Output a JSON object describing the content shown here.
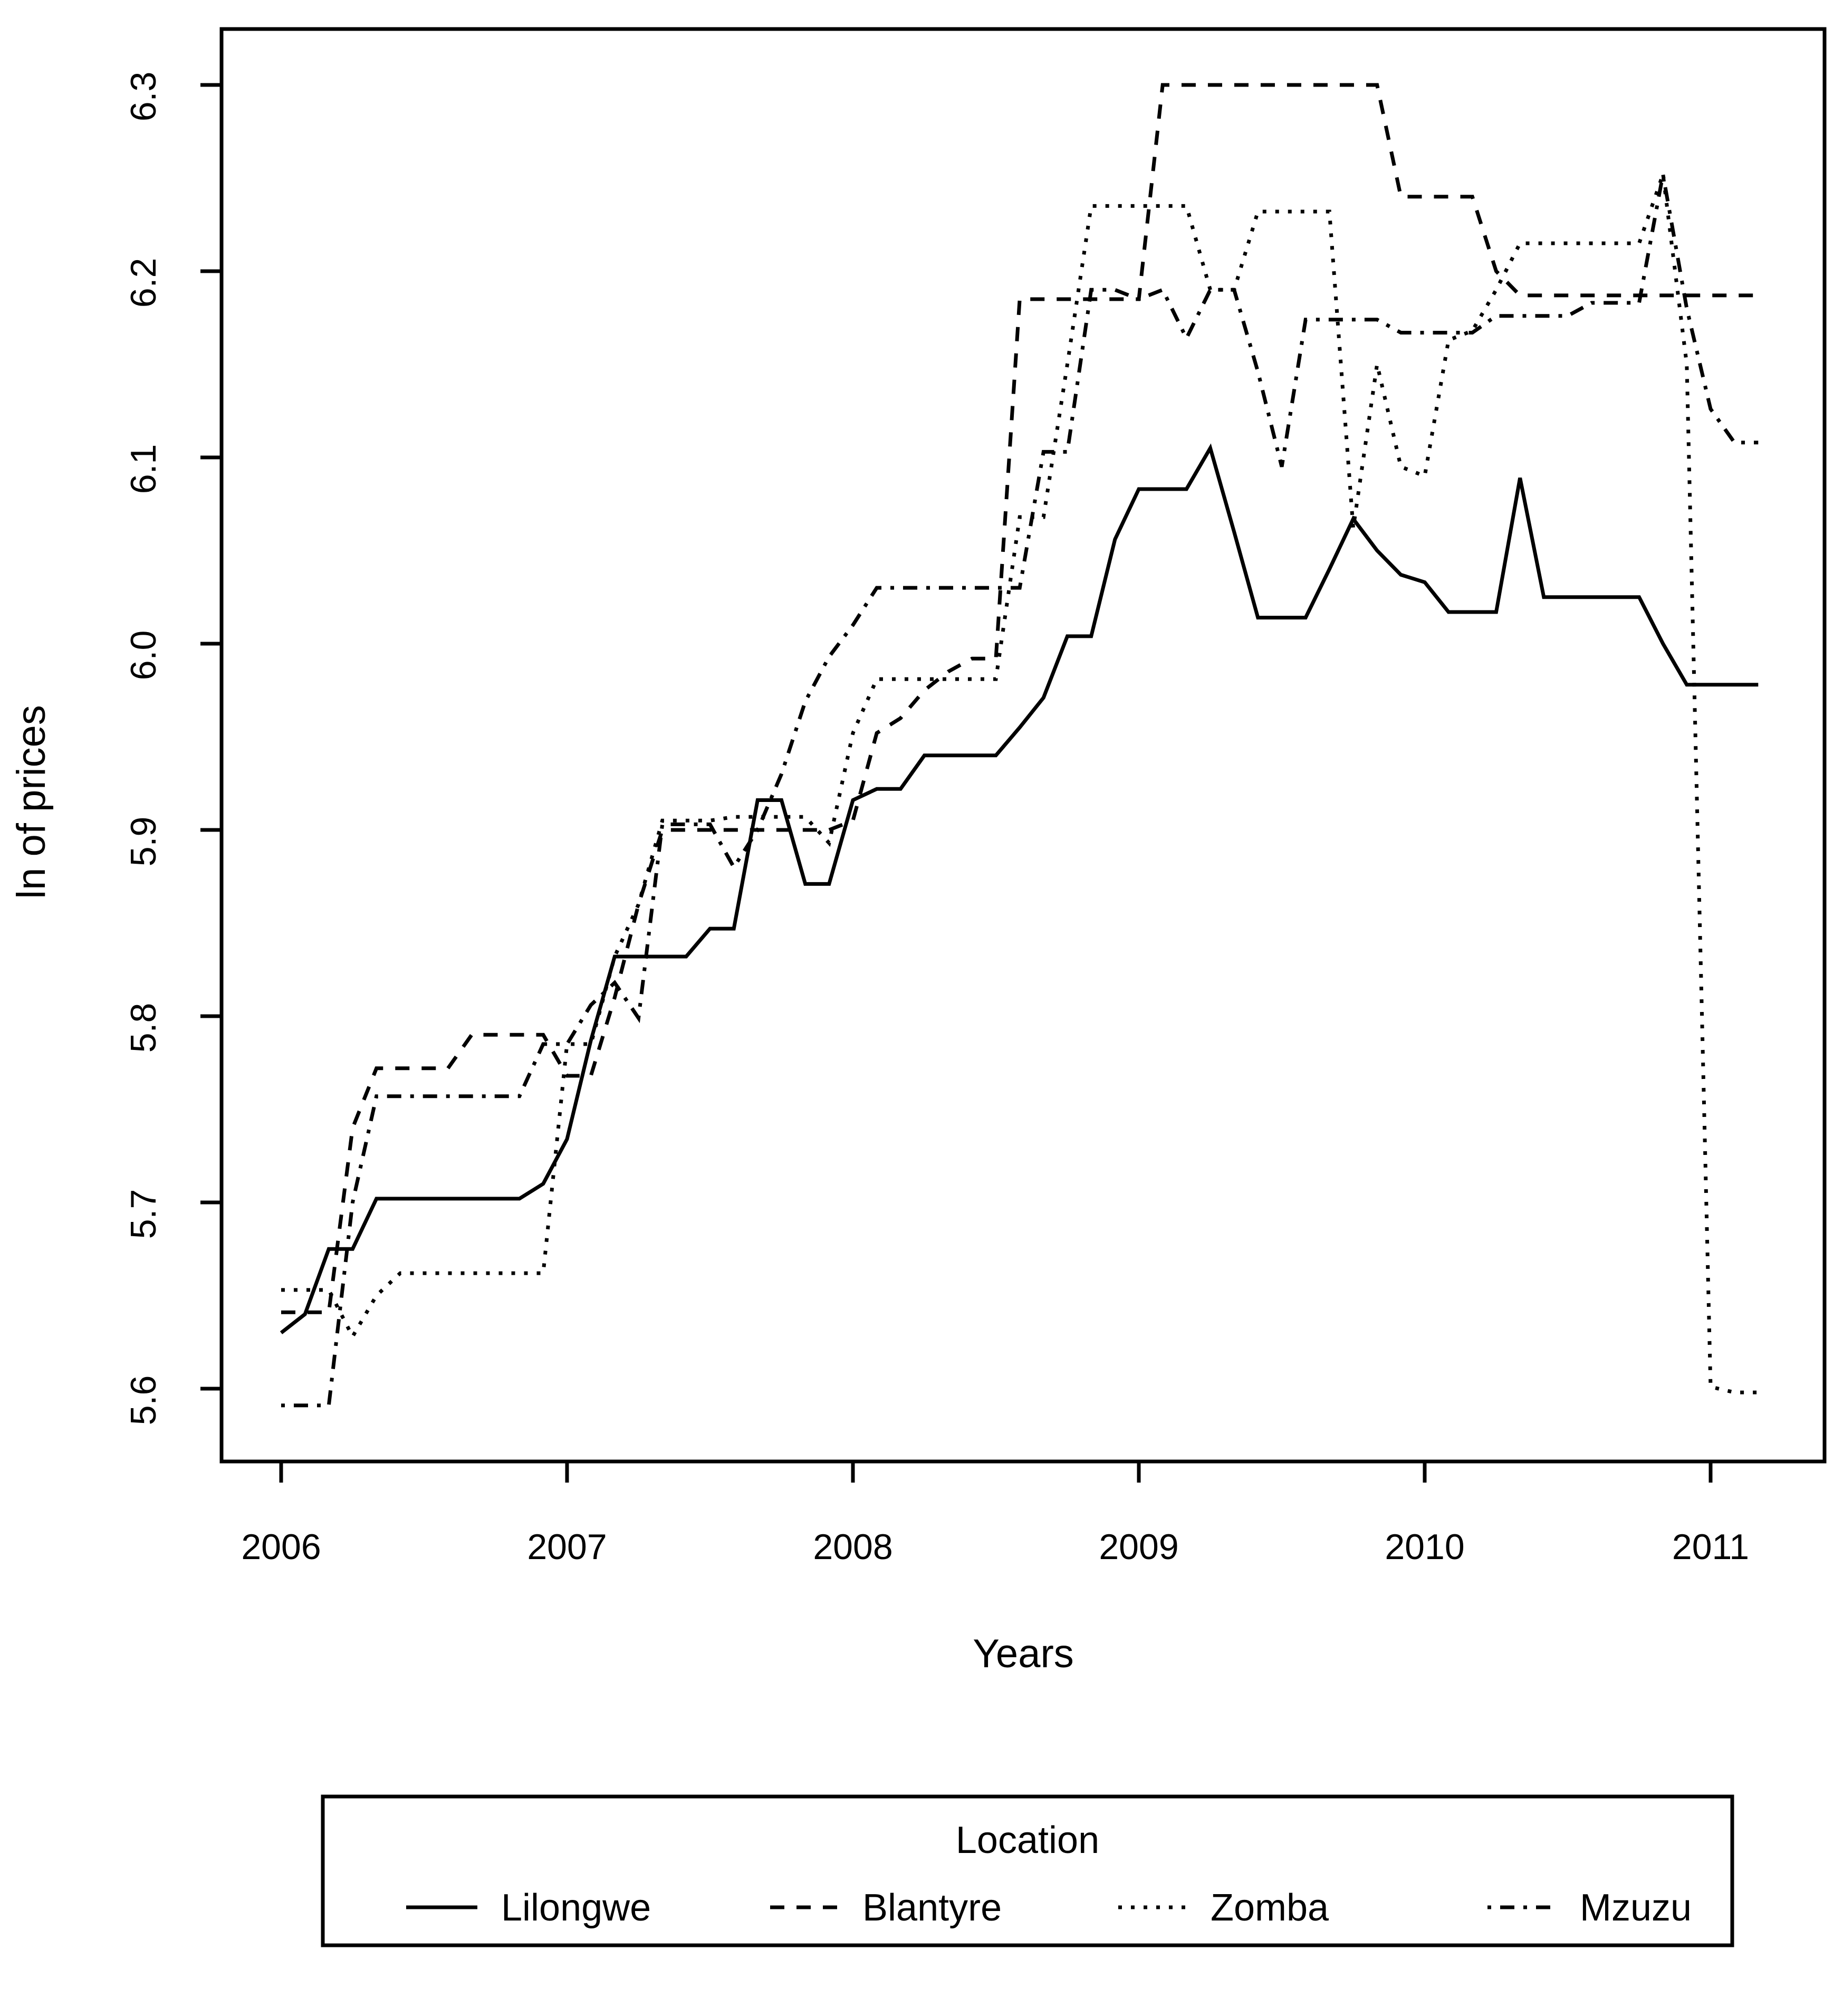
{
  "figure": {
    "background_color": "#ffffff",
    "line_color": "#000000"
  },
  "chart_data": {
    "type": "line",
    "title": "",
    "xlabel": "Years",
    "ylabel": "ln of prices",
    "x_unit": "monthly",
    "x_start": "2006-01",
    "x_end": "2011-03",
    "points_per_series": 63,
    "x_ticks": [
      "2006",
      "2007",
      "2008",
      "2009",
      "2010",
      "2011"
    ],
    "y_ticks": [
      "5.6",
      "5.7",
      "5.8",
      "5.9",
      "6.0",
      "6.1",
      "6.2",
      "6.3"
    ],
    "xlim": [
      2005.79,
      2011.4
    ],
    "ylim": [
      5.556,
      6.333
    ],
    "grid": false,
    "legend": {
      "title": "Location",
      "position": "bottom",
      "orientation": "horizontal"
    },
    "series": [
      {
        "name": "Lilongwe",
        "style": "solid",
        "values": [
          5.63,
          5.64,
          5.675,
          5.675,
          5.702,
          5.702,
          5.702,
          5.702,
          5.702,
          5.702,
          5.702,
          5.71,
          5.734,
          5.787,
          5.832,
          5.832,
          5.832,
          5.832,
          5.847,
          5.847,
          5.916,
          5.916,
          5.871,
          5.871,
          5.916,
          5.922,
          5.922,
          5.94,
          5.94,
          5.94,
          5.94,
          5.955,
          5.971,
          6.004,
          6.004,
          6.056,
          6.083,
          6.083,
          6.083,
          6.105,
          6.06,
          6.014,
          6.014,
          6.014,
          6.04,
          6.067,
          6.05,
          6.037,
          6.033,
          6.017,
          6.017,
          6.017,
          6.089,
          6.025,
          6.025,
          6.025,
          6.025,
          6.025,
          6.0,
          5.978,
          5.978,
          5.978,
          5.978
        ]
      },
      {
        "name": "Blantyre",
        "style": "dashed",
        "values": [
          5.641,
          5.641,
          5.641,
          5.74,
          5.772,
          5.772,
          5.772,
          5.772,
          5.79,
          5.79,
          5.79,
          5.79,
          5.768,
          5.768,
          5.81,
          5.86,
          5.9,
          5.9,
          5.9,
          5.9,
          5.9,
          5.9,
          5.9,
          5.9,
          5.905,
          5.952,
          5.96,
          5.975,
          5.985,
          5.992,
          5.992,
          6.185,
          6.185,
          6.185,
          6.185,
          6.185,
          6.185,
          6.3,
          6.3,
          6.3,
          6.3,
          6.3,
          6.3,
          6.3,
          6.3,
          6.3,
          6.3,
          6.24,
          6.24,
          6.24,
          6.24,
          6.2,
          6.187,
          6.187,
          6.187,
          6.187,
          6.187,
          6.187,
          6.187,
          6.187,
          6.187,
          6.187,
          6.187
        ]
      },
      {
        "name": "Zomba",
        "style": "dotted",
        "values": [
          5.653,
          5.653,
          5.653,
          5.628,
          5.65,
          5.662,
          5.662,
          5.662,
          5.662,
          5.662,
          5.662,
          5.662,
          5.785,
          5.785,
          5.832,
          5.86,
          5.905,
          5.905,
          5.905,
          5.907,
          5.907,
          5.907,
          5.907,
          5.893,
          5.952,
          5.981,
          5.981,
          5.981,
          5.981,
          5.981,
          5.981,
          6.068,
          6.068,
          6.15,
          6.235,
          6.235,
          6.235,
          6.235,
          6.235,
          6.19,
          6.19,
          6.232,
          6.232,
          6.232,
          6.232,
          6.062,
          6.15,
          6.095,
          6.09,
          6.163,
          6.168,
          6.19,
          6.215,
          6.215,
          6.215,
          6.215,
          6.215,
          6.215,
          6.252,
          6.15,
          5.601,
          5.598,
          5.598
        ]
      },
      {
        "name": "Mzuzu",
        "style": "dotdash",
        "values": [
          5.591,
          5.591,
          5.591,
          5.7,
          5.757,
          5.757,
          5.757,
          5.757,
          5.757,
          5.757,
          5.757,
          5.785,
          5.785,
          5.806,
          5.818,
          5.799,
          5.903,
          5.903,
          5.903,
          5.88,
          5.9,
          5.93,
          5.969,
          5.993,
          6.01,
          6.03,
          6.03,
          6.03,
          6.03,
          6.03,
          6.03,
          6.03,
          6.103,
          6.103,
          6.19,
          6.19,
          6.185,
          6.19,
          6.164,
          6.19,
          6.19,
          6.146,
          6.095,
          6.174,
          6.174,
          6.174,
          6.174,
          6.167,
          6.167,
          6.167,
          6.167,
          6.176,
          6.176,
          6.176,
          6.176,
          6.183,
          6.183,
          6.183,
          6.252,
          6.18,
          6.126,
          6.108,
          6.108
        ]
      }
    ]
  }
}
